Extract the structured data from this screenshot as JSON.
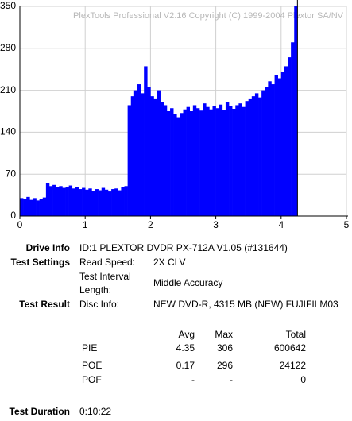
{
  "chart_data": {
    "type": "bar",
    "annotation": "PlexTools Professional V2.16 Copyright (C) 1999-2004 Plextor SA/NV",
    "x": [
      0,
      0.05,
      0.1,
      0.15,
      0.2,
      0.25,
      0.3,
      0.35,
      0.4,
      0.45,
      0.5,
      0.55,
      0.6,
      0.65,
      0.7,
      0.75,
      0.8,
      0.85,
      0.9,
      0.95,
      1,
      1.05,
      1.1,
      1.15,
      1.2,
      1.25,
      1.3,
      1.35,
      1.4,
      1.45,
      1.5,
      1.55,
      1.6,
      1.65,
      1.7,
      1.75,
      1.8,
      1.85,
      1.9,
      1.95,
      2,
      2.05,
      2.1,
      2.15,
      2.2,
      2.25,
      2.3,
      2.35,
      2.4,
      2.45,
      2.5,
      2.55,
      2.6,
      2.65,
      2.7,
      2.75,
      2.8,
      2.85,
      2.9,
      2.95,
      3,
      3.05,
      3.1,
      3.15,
      3.2,
      3.25,
      3.3,
      3.35,
      3.4,
      3.45,
      3.5,
      3.55,
      3.6,
      3.65,
      3.7,
      3.75,
      3.8,
      3.85,
      3.9,
      3.95,
      4,
      4.05,
      4.1,
      4.15,
      4.2
    ],
    "values": [
      30,
      28,
      32,
      27,
      30,
      26,
      29,
      31,
      55,
      50,
      52,
      48,
      50,
      47,
      49,
      51,
      46,
      48,
      45,
      47,
      44,
      46,
      42,
      45,
      43,
      47,
      44,
      41,
      45,
      46,
      43,
      48,
      50,
      185,
      200,
      210,
      220,
      205,
      250,
      215,
      200,
      195,
      210,
      190,
      185,
      175,
      180,
      170,
      165,
      172,
      178,
      182,
      175,
      185,
      180,
      176,
      188,
      182,
      178,
      184,
      180,
      186,
      177,
      190,
      183,
      179,
      185,
      188,
      182,
      192,
      195,
      200,
      205,
      198,
      210,
      215,
      225,
      220,
      235,
      230,
      240,
      250,
      265,
      290,
      350
    ],
    "color": "#0000ff",
    "xlim": [
      0,
      5
    ],
    "xticks": [
      0,
      1,
      2,
      3,
      4,
      5
    ],
    "ylim": [
      0,
      350
    ],
    "yticks": [
      0,
      70,
      140,
      210,
      280,
      350
    ],
    "grid": true
  },
  "report": {
    "drive_info": {
      "label": "Drive Info",
      "value": "ID:1 PLEXTOR DVDR PX-712A V1.05 (#131644)"
    },
    "test_settings": {
      "label": "Test Settings",
      "read_speed_label": "Read Speed:",
      "read_speed": "2X CLV",
      "interval_label_1": "Test Interval",
      "interval_label_2": "Length:",
      "interval": "Middle Accuracy"
    },
    "test_result": {
      "label": "Test Result",
      "disc_info_label": "Disc Info:",
      "disc_info": "NEW DVD-R, 4315 MB (NEW) FUJIFILM03"
    },
    "table": {
      "header": [
        "Avg",
        "Max",
        "Total"
      ],
      "rows": [
        [
          "PIE",
          "4.35",
          "306",
          "600642"
        ],
        [
          "POE",
          "0.17",
          "296",
          "24122"
        ],
        [
          "POF",
          "-",
          "-",
          "0"
        ]
      ]
    },
    "test_duration": {
      "label": "Test Duration",
      "value": "0:10:22"
    }
  }
}
